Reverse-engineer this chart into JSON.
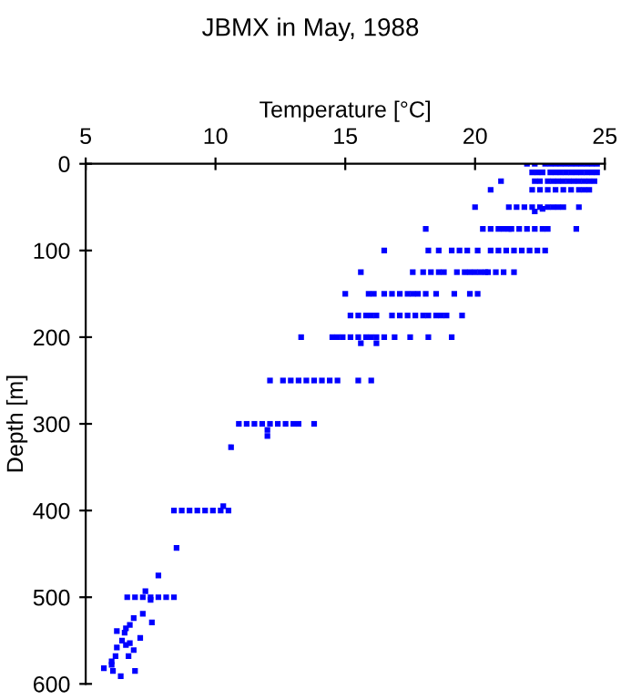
{
  "chart_data": {
    "type": "scatter",
    "title": "JBMX in May, 1988",
    "xlabel": "Temperature [°C]",
    "ylabel": "Depth [m]",
    "xlim": [
      5,
      25
    ],
    "xticks": [
      5,
      10,
      15,
      20,
      25
    ],
    "ylim": [
      600,
      0
    ],
    "yticks": [
      0,
      100,
      200,
      300,
      400,
      500,
      600
    ],
    "grid": false,
    "marker": "square",
    "series": [
      {
        "color": "#0000ff",
        "x": [
          22.0,
          22.3,
          22.7,
          22.9,
          23.1,
          23.3,
          23.5,
          23.7,
          23.9,
          24.1,
          24.3,
          24.5,
          24.7,
          22.2,
          22.4,
          22.6,
          22.9,
          23.1,
          23.3,
          23.5,
          23.7,
          23.9,
          24.1,
          24.3,
          24.5,
          24.7,
          21.0,
          22.3,
          22.5,
          22.8,
          23.0,
          23.2,
          23.4,
          23.6,
          23.8,
          24.0,
          24.2,
          24.4,
          24.6,
          20.6,
          22.2,
          22.5,
          22.8,
          23.1,
          23.4,
          23.7,
          24.0,
          24.2,
          24.4,
          20.0,
          21.3,
          21.6,
          21.9,
          22.2,
          22.5,
          22.8,
          23.0,
          23.2,
          23.4,
          24.0,
          22.3,
          22.6,
          18.1,
          20.3,
          20.6,
          20.9,
          21.1,
          21.3,
          21.4,
          21.7,
          22.0,
          22.3,
          22.6,
          22.8,
          23.9,
          16.5,
          18.2,
          18.6,
          19.1,
          19.4,
          19.7,
          20.1,
          20.6,
          20.9,
          21.2,
          21.5,
          21.8,
          22.1,
          22.4,
          22.7,
          15.6,
          17.6,
          18.0,
          18.3,
          18.6,
          18.8,
          19.3,
          19.6,
          19.8,
          20.0,
          20.2,
          20.4,
          20.5,
          20.8,
          21.1,
          21.5,
          15.0,
          15.9,
          16.1,
          16.5,
          16.8,
          17.1,
          17.4,
          17.6,
          17.8,
          18.1,
          18.5,
          19.2,
          19.8,
          20.1,
          15.2,
          15.5,
          15.8,
          16.0,
          16.2,
          16.8,
          17.1,
          17.4,
          17.7,
          18.0,
          18.2,
          18.5,
          18.7,
          18.9,
          19.5,
          13.3,
          14.5,
          14.7,
          14.9,
          15.2,
          15.5,
          15.8,
          16.0,
          16.2,
          16.5,
          16.9,
          17.5,
          18.2,
          19.1,
          15.6,
          16.2,
          12.1,
          12.6,
          12.9,
          13.2,
          13.5,
          13.8,
          14.1,
          14.4,
          14.7,
          15.5,
          16.0,
          10.9,
          11.2,
          11.5,
          11.8,
          12.1,
          12.4,
          12.7,
          13.0,
          13.2,
          13.8,
          12.0,
          12.0,
          10.6,
          8.4,
          8.7,
          9.0,
          9.3,
          9.6,
          9.9,
          10.2,
          10.5,
          10.3,
          8.5,
          7.8,
          6.6,
          6.9,
          7.2,
          7.5,
          7.8,
          8.1,
          8.4,
          7.3,
          7.5,
          7.2,
          6.85,
          7.55,
          6.7,
          6.2,
          6.55,
          6.5,
          7.1,
          6.4,
          6.7,
          6.2,
          6.85,
          6.15,
          6.65,
          6.0,
          6.0,
          5.7,
          6.05,
          6.35,
          6.9,
          6.55
        ],
        "values": [
          0,
          0,
          0,
          0,
          0,
          0,
          0,
          0,
          0,
          0,
          0,
          0,
          0,
          10,
          10,
          10,
          10,
          10,
          10,
          10,
          10,
          10,
          10,
          10,
          10,
          10,
          20,
          20,
          20,
          20,
          20,
          20,
          20,
          20,
          20,
          20,
          20,
          20,
          20,
          30,
          30,
          30,
          30,
          30,
          30,
          30,
          30,
          30,
          30,
          50,
          50,
          50,
          50,
          50,
          50,
          50,
          50,
          50,
          50,
          50,
          55,
          52,
          75,
          75,
          75,
          75,
          75,
          75,
          75,
          75,
          75,
          75,
          75,
          75,
          75,
          100,
          100,
          100,
          100,
          100,
          100,
          100,
          100,
          100,
          100,
          100,
          100,
          100,
          100,
          100,
          125,
          125,
          125,
          125,
          125,
          125,
          125,
          125,
          125,
          125,
          125,
          125,
          125,
          125,
          125,
          125,
          150,
          150,
          150,
          150,
          150,
          150,
          150,
          150,
          150,
          150,
          150,
          150,
          150,
          150,
          175,
          175,
          175,
          175,
          175,
          175,
          175,
          175,
          175,
          175,
          175,
          175,
          175,
          175,
          175,
          200,
          200,
          200,
          200,
          200,
          200,
          200,
          200,
          200,
          200,
          200,
          200,
          200,
          200,
          207,
          207,
          250,
          250,
          250,
          250,
          250,
          250,
          250,
          250,
          250,
          250,
          250,
          300,
          300,
          300,
          300,
          300,
          300,
          300,
          300,
          300,
          300,
          307,
          314,
          327,
          400,
          400,
          400,
          400,
          400,
          400,
          400,
          400,
          395,
          443,
          475,
          500,
          500,
          500,
          500,
          500,
          500,
          500,
          493,
          503,
          519,
          524,
          529,
          532,
          539,
          536,
          541,
          547,
          550,
          553,
          558,
          561,
          568,
          568,
          574,
          578,
          582,
          585,
          591,
          585,
          555
        ]
      }
    ]
  }
}
